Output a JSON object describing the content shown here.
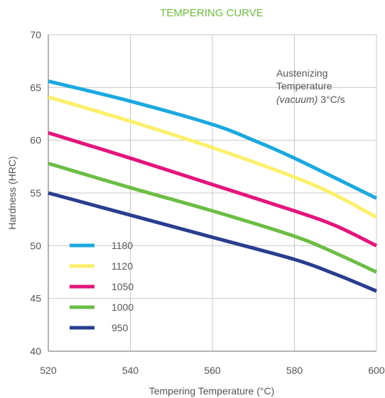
{
  "chart_data": {
    "type": "line",
    "title": "TEMPERING CURVE",
    "xlabel": "Tempering Temperature (°C)",
    "ylabel": "Hardness (HRC)",
    "xlim": [
      520,
      600
    ],
    "ylim": [
      40,
      70
    ],
    "x_ticks": [
      "520",
      "540",
      "560",
      "580",
      "600"
    ],
    "y_ticks": [
      "40",
      "45",
      "50",
      "55",
      "60",
      "65",
      "70"
    ],
    "grid": true,
    "legend_position": "bottom-left",
    "annotation": {
      "line1": "Austenizing",
      "line2": "Temperature",
      "line3_italic": "(vacuum)",
      "line3_rest": " 3°C/s"
    },
    "series": [
      {
        "name": "1180",
        "color": "#1aa9df",
        "points": [
          [
            520,
            65.6
          ],
          [
            540,
            63.7
          ],
          [
            560,
            61.5
          ],
          [
            570,
            60.0
          ],
          [
            580,
            58.3
          ],
          [
            600,
            54.5
          ]
        ]
      },
      {
        "name": "1120",
        "color": "#fbf06a",
        "points": [
          [
            520,
            64.1
          ],
          [
            540,
            61.8
          ],
          [
            560,
            59.3
          ],
          [
            580,
            56.5
          ],
          [
            590,
            54.8
          ],
          [
            600,
            52.7
          ]
        ]
      },
      {
        "name": "1050",
        "color": "#e5147a",
        "points": [
          [
            520,
            60.7
          ],
          [
            540,
            58.3
          ],
          [
            560,
            55.8
          ],
          [
            580,
            53.3
          ],
          [
            590,
            51.9
          ],
          [
            600,
            50.0
          ]
        ]
      },
      {
        "name": "1000",
        "color": "#6cbd45",
        "points": [
          [
            520,
            57.8
          ],
          [
            540,
            55.5
          ],
          [
            560,
            53.3
          ],
          [
            580,
            50.9
          ],
          [
            590,
            49.3
          ],
          [
            600,
            47.5
          ]
        ]
      },
      {
        "name": "950",
        "color": "#2a3d8f",
        "points": [
          [
            520,
            55.0
          ],
          [
            540,
            52.9
          ],
          [
            560,
            50.8
          ],
          [
            580,
            48.7
          ],
          [
            590,
            47.3
          ],
          [
            600,
            45.7
          ]
        ]
      }
    ]
  }
}
